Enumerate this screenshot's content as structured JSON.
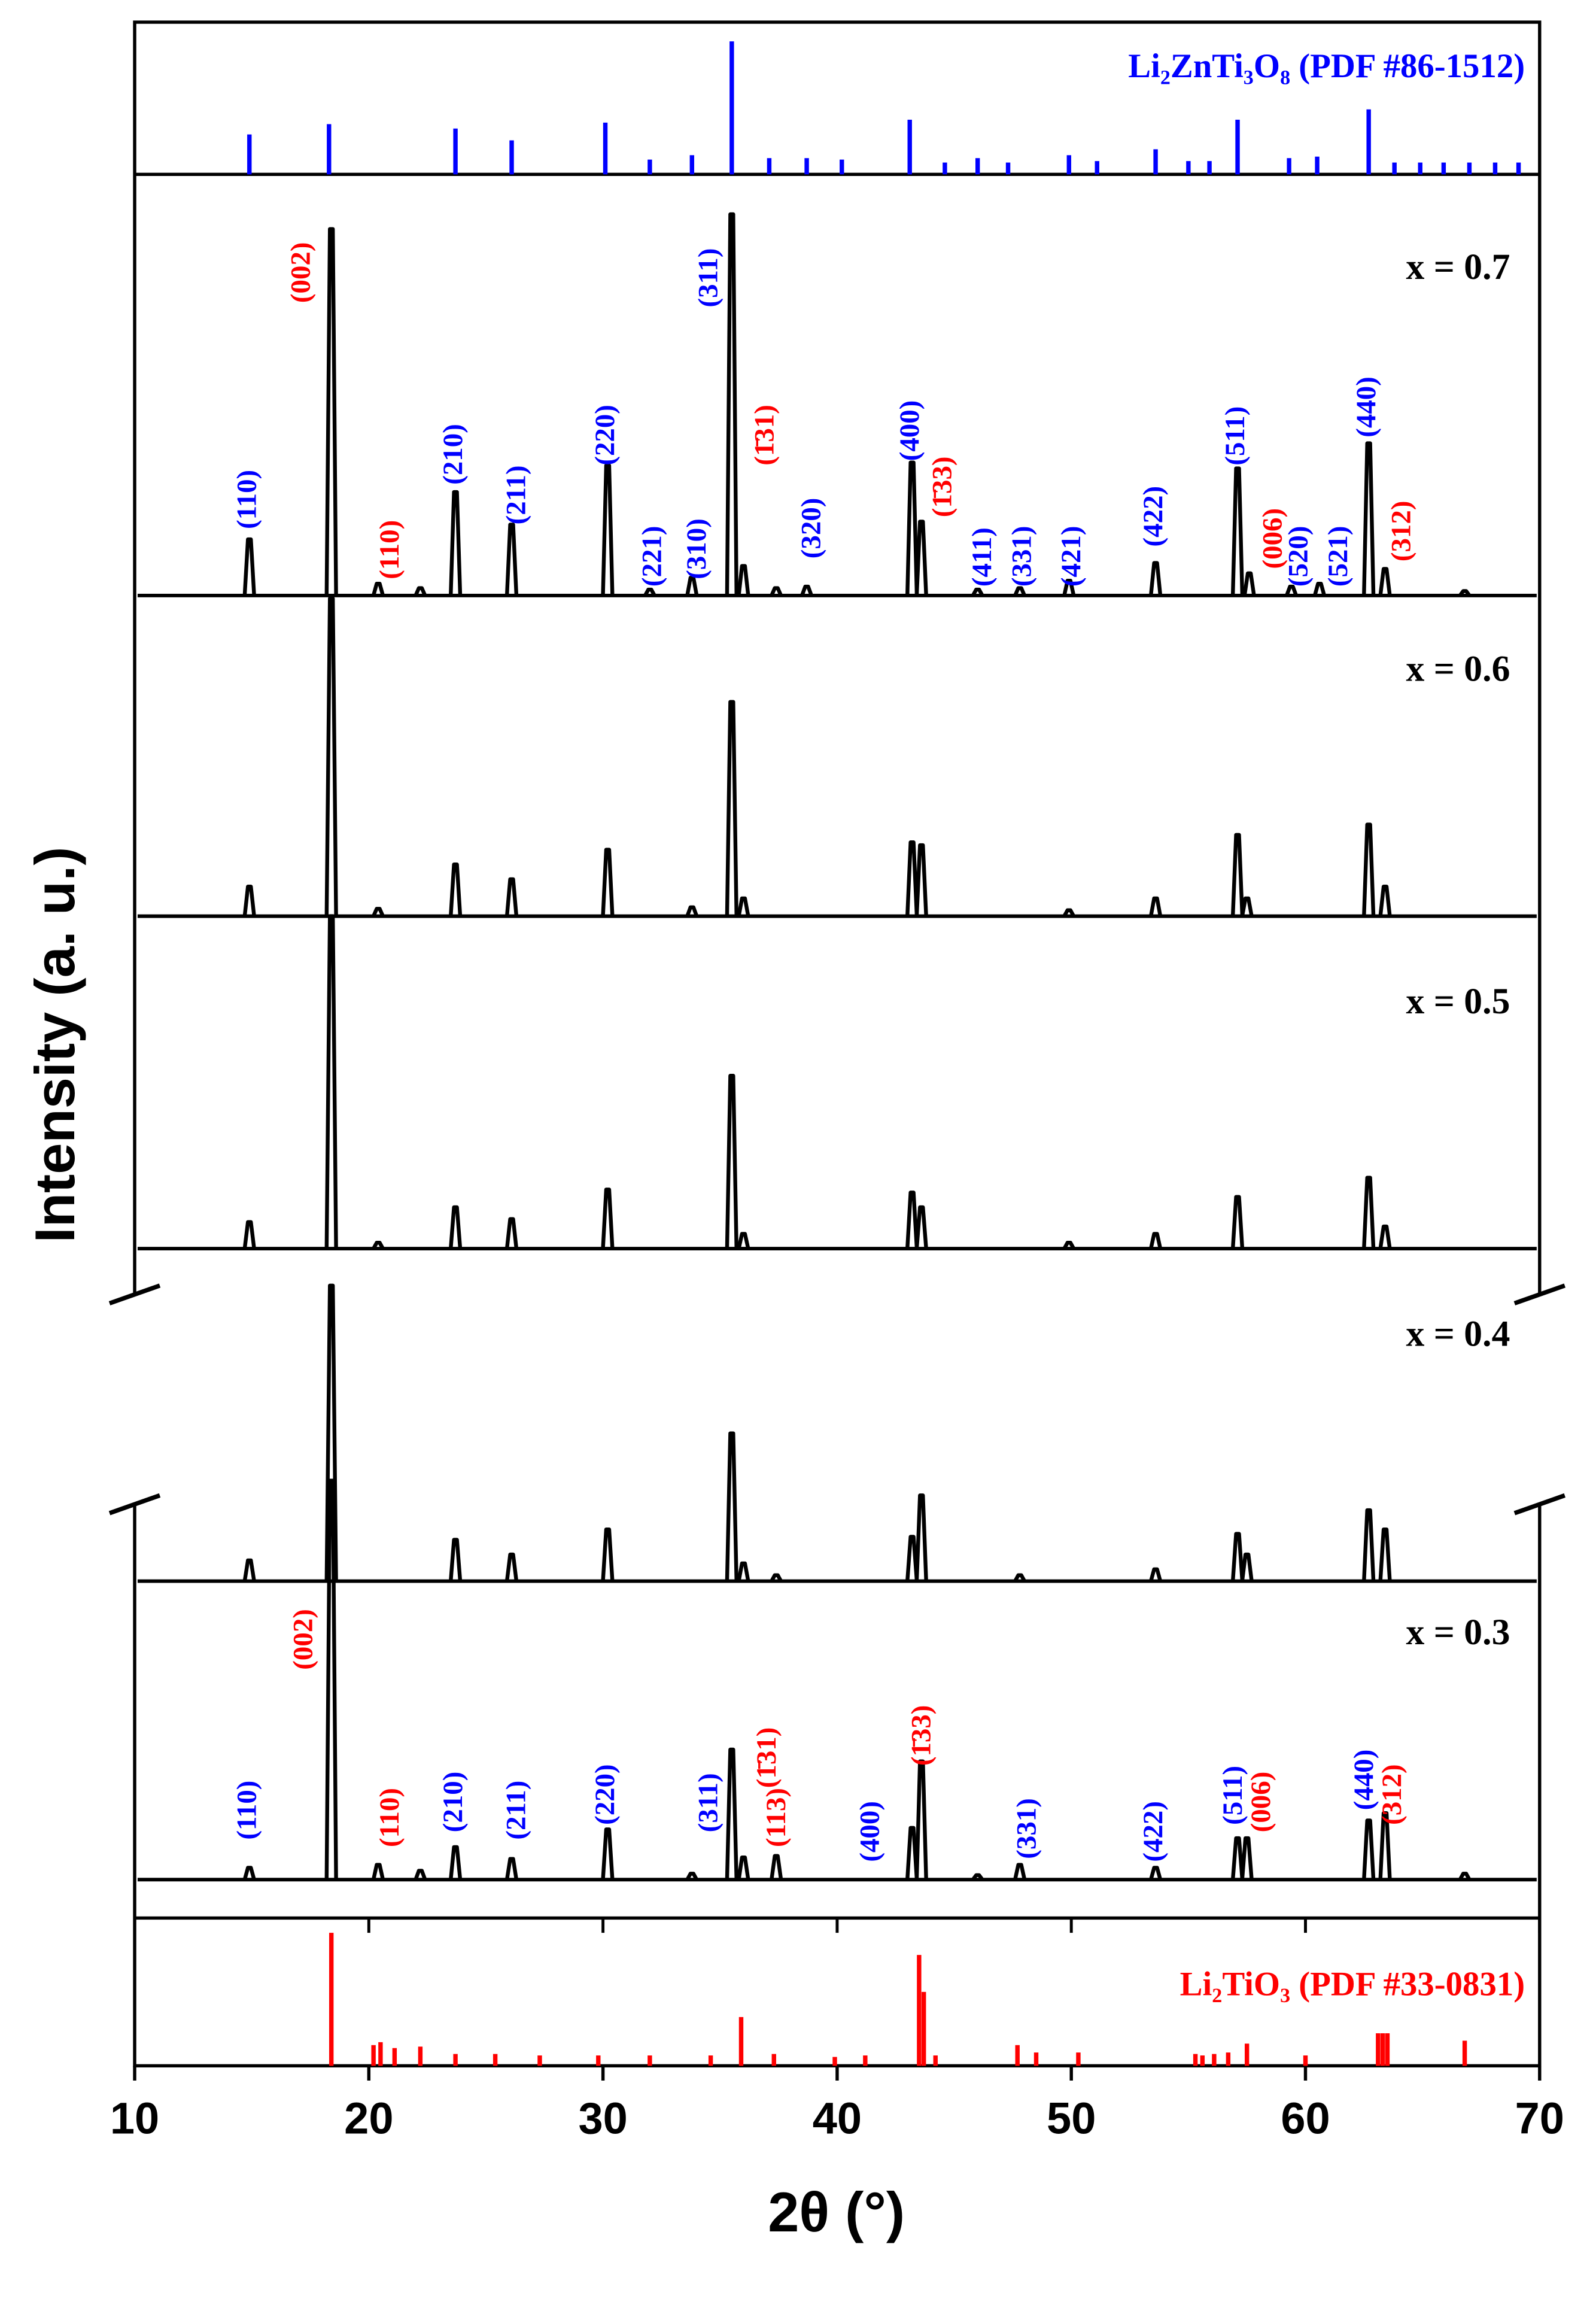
{
  "chart_data": {
    "type": "line",
    "x_label": "2θ (°)",
    "y_label": "Intensity (a. u.)",
    "xlim": [
      10,
      70
    ],
    "xticks": [
      10,
      20,
      30,
      40,
      50,
      60,
      70
    ],
    "series": [
      {
        "name": "x = 0.7",
        "color": "#000000",
        "x": [
          14.9,
          18.4,
          20.4,
          22.2,
          23.7,
          26.1,
          30.2,
          32.0,
          33.8,
          35.5,
          36.0,
          37.4,
          38.7,
          43.2,
          43.6,
          46.0,
          47.8,
          49.9,
          53.6,
          57.1,
          57.6,
          59.4,
          60.6,
          62.7,
          63.4,
          66.8
        ],
        "values": [
          38,
          248,
          8,
          5,
          70,
          48,
          88,
          4,
          12,
          258,
          20,
          5,
          6,
          90,
          50,
          4,
          5,
          10,
          22,
          86,
          15,
          6,
          8,
          103,
          18,
          3
        ],
        "annotations": [
          {
            "label": "(110)",
            "x": 14.9,
            "y": 45,
            "color": "#0000ff"
          },
          {
            "label": "(002)",
            "x": 17.2,
            "y": 198,
            "color": "#ff0000"
          },
          {
            "label": "(110)",
            "x": 21.0,
            "y": 11,
            "color": "#ff0000"
          },
          {
            "label": "(210)",
            "x": 23.7,
            "y": 75,
            "color": "#0000ff"
          },
          {
            "label": "(211)",
            "x": 26.4,
            "y": 48,
            "color": "#0000ff"
          },
          {
            "label": "(220)",
            "x": 30.2,
            "y": 88,
            "color": "#0000ff"
          },
          {
            "label": "(221)",
            "x": 32.2,
            "y": 6,
            "color": "#0000ff"
          },
          {
            "label": "(310)",
            "x": 34.1,
            "y": 11,
            "color": "#0000ff"
          },
          {
            "label": "(311)",
            "x": 34.6,
            "y": 195,
            "color": "#0000ff"
          },
          {
            "label": "(1̄31)",
            "x": 37.0,
            "y": 88,
            "color": "#ff0000"
          },
          {
            "label": "(320)",
            "x": 39.0,
            "y": 25,
            "color": "#0000ff"
          },
          {
            "label": "(400)",
            "x": 43.2,
            "y": 91,
            "color": "#0000ff"
          },
          {
            "label": "(1̄33)",
            "x": 44.6,
            "y": 53,
            "color": "#ff0000"
          },
          {
            "label": "(411)",
            "x": 46.3,
            "y": 6,
            "color": "#0000ff"
          },
          {
            "label": "(331)",
            "x": 48.0,
            "y": 6,
            "color": "#0000ff"
          },
          {
            "label": "(421)",
            "x": 50.1,
            "y": 6,
            "color": "#0000ff"
          },
          {
            "label": "(422)",
            "x": 53.6,
            "y": 33,
            "color": "#0000ff"
          },
          {
            "label": "(511)",
            "x": 57.1,
            "y": 88,
            "color": "#0000ff"
          },
          {
            "label": "(006)",
            "x": 58.7,
            "y": 18,
            "color": "#ff0000"
          },
          {
            "label": "(520)",
            "x": 59.8,
            "y": 6,
            "color": "#0000ff"
          },
          {
            "label": "(521)",
            "x": 61.5,
            "y": 6,
            "color": "#0000ff"
          },
          {
            "label": "(440)",
            "x": 62.7,
            "y": 107,
            "color": "#0000ff"
          },
          {
            "label": "(312)",
            "x": 64.2,
            "y": 23,
            "color": "#ff0000"
          }
        ]
      },
      {
        "name": "x = 0.6",
        "color": "#000000",
        "x": [
          14.9,
          18.4,
          20.4,
          23.7,
          26.1,
          30.2,
          33.8,
          35.5,
          36.0,
          43.2,
          43.6,
          49.9,
          53.6,
          57.1,
          57.5,
          62.7,
          63.4
        ],
        "values": [
          20,
          215,
          5,
          35,
          25,
          45,
          6,
          145,
          12,
          50,
          48,
          4,
          12,
          55,
          12,
          62,
          20
        ]
      },
      {
        "name": "x = 0.5",
        "color": "#000000",
        "x": [
          14.9,
          18.4,
          20.4,
          23.7,
          26.1,
          30.2,
          35.5,
          36.0,
          43.2,
          43.6,
          49.9,
          53.6,
          57.1,
          62.7,
          63.4
        ],
        "values": [
          18,
          225,
          4,
          28,
          20,
          40,
          117,
          10,
          38,
          28,
          4,
          10,
          35,
          48,
          15
        ]
      },
      {
        "name": "x = 0.4",
        "color": "#000000",
        "x": [
          14.9,
          18.4,
          23.7,
          26.1,
          30.2,
          35.5,
          36.0,
          37.4,
          43.2,
          43.6,
          47.8,
          53.6,
          57.1,
          57.5,
          62.7,
          63.4
        ],
        "values": [
          14,
          200,
          28,
          18,
          35,
          100,
          12,
          4,
          30,
          58,
          4,
          8,
          32,
          18,
          48,
          35
        ]
      },
      {
        "name": "x = 0.3",
        "color": "#000000",
        "x": [
          14.9,
          18.4,
          20.4,
          22.2,
          23.7,
          26.1,
          30.2,
          33.8,
          35.5,
          36.0,
          37.4,
          43.2,
          43.6,
          46.0,
          47.8,
          53.6,
          57.1,
          57.5,
          62.7,
          63.4,
          66.8
        ],
        "values": [
          8,
          270,
          10,
          6,
          22,
          14,
          34,
          4,
          88,
          15,
          16,
          35,
          80,
          3,
          10,
          8,
          28,
          28,
          40,
          45,
          4
        ],
        "annotations": [
          {
            "label": "(110)",
            "x": 14.9,
            "y": 27,
            "color": "#0000ff"
          },
          {
            "label": "(002)",
            "x": 17.3,
            "y": 142,
            "color": "#ff0000"
          },
          {
            "label": "(110)",
            "x": 21.0,
            "y": 22,
            "color": "#ff0000"
          },
          {
            "label": "(210)",
            "x": 23.7,
            "y": 32,
            "color": "#0000ff"
          },
          {
            "label": "(211)",
            "x": 26.4,
            "y": 27,
            "color": "#0000ff"
          },
          {
            "label": "(220)",
            "x": 30.2,
            "y": 37,
            "color": "#0000ff"
          },
          {
            "label": "(311)",
            "x": 34.6,
            "y": 32,
            "color": "#0000ff"
          },
          {
            "label": "(1̄31)",
            "x": 37.1,
            "y": 62,
            "color": "#ff0000"
          },
          {
            "label": "(113)",
            "x": 37.5,
            "y": 22,
            "color": "#ff0000"
          },
          {
            "label": "(400)",
            "x": 41.5,
            "y": 12,
            "color": "#0000ff"
          },
          {
            "label": "(1̄33)",
            "x": 43.7,
            "y": 77,
            "color": "#ff0000"
          },
          {
            "label": "(331)",
            "x": 48.2,
            "y": 14,
            "color": "#0000ff"
          },
          {
            "label": "(422)",
            "x": 53.6,
            "y": 12,
            "color": "#0000ff"
          },
          {
            "label": "(511)",
            "x": 57.0,
            "y": 37,
            "color": "#0000ff"
          },
          {
            "label": "(006)",
            "x": 58.2,
            "y": 32,
            "color": "#ff0000"
          },
          {
            "label": "(440)",
            "x": 62.6,
            "y": 47,
            "color": "#0000ff"
          },
          {
            "label": "(312)",
            "x": 63.8,
            "y": 37,
            "color": "#ff0000"
          }
        ]
      }
    ],
    "references": [
      {
        "name": "Li₂ZnTi₃O₈ (PDF #86-1512)",
        "color": "#0000ff",
        "x": [
          14.9,
          18.3,
          23.7,
          26.1,
          30.1,
          32.0,
          33.8,
          35.5,
          37.1,
          38.7,
          40.2,
          43.1,
          44.6,
          46.0,
          47.3,
          49.9,
          51.1,
          53.6,
          55.0,
          55.9,
          57.1,
          59.3,
          60.5,
          62.7,
          63.8,
          64.9,
          65.9,
          67.0,
          68.1,
          69.1
        ],
        "values": [
          27,
          34,
          31,
          23,
          35,
          10,
          13,
          90,
          11,
          11,
          10,
          37,
          8,
          11,
          8,
          13,
          9,
          17,
          9,
          9,
          37,
          11,
          12,
          44,
          8,
          8,
          8,
          8,
          8,
          8
        ]
      },
      {
        "name": "Li₂TiO₃ (PDF #33-0831)",
        "color": "#ff0000",
        "x": [
          18.4,
          20.2,
          20.5,
          21.1,
          22.2,
          23.7,
          25.4,
          27.3,
          29.8,
          32.0,
          34.6,
          35.9,
          37.3,
          39.9,
          41.2,
          43.5,
          43.7,
          44.2,
          47.7,
          48.5,
          50.3,
          55.3,
          55.6,
          56.1,
          56.7,
          57.5,
          60.0,
          63.1,
          63.3,
          63.5,
          66.8
        ],
        "values": [
          90,
          14,
          16,
          12,
          13,
          8,
          8,
          7,
          7,
          7,
          7,
          33,
          8,
          6,
          7,
          75,
          50,
          7,
          14,
          9,
          9,
          8,
          7,
          8,
          9,
          15,
          7,
          22,
          22,
          22,
          17
        ]
      }
    ]
  }
}
